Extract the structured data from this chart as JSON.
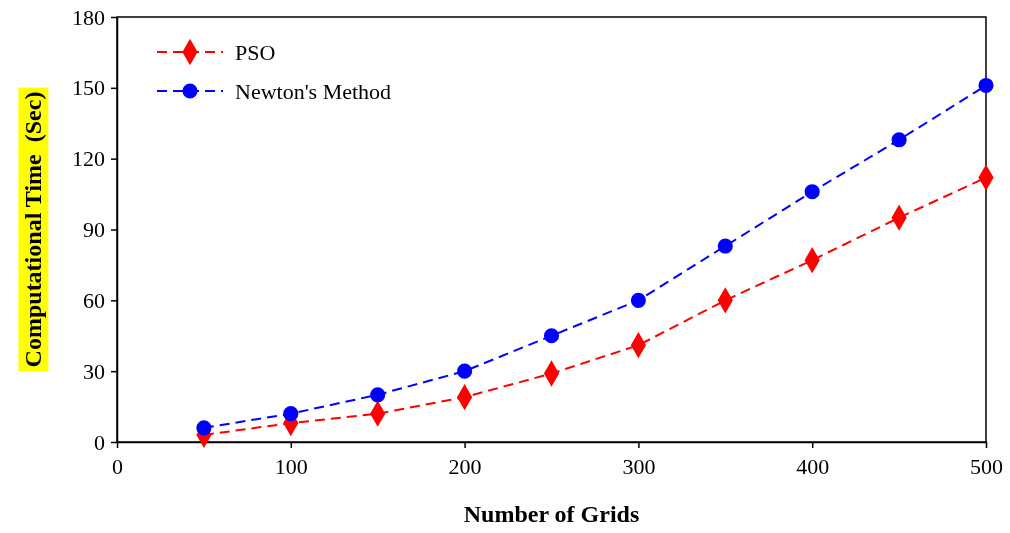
{
  "chart_data": {
    "type": "line",
    "xlabel": "Number of Grids",
    "ylabel": "Computational Time  (Sec)",
    "x": [
      50,
      100,
      150,
      200,
      250,
      300,
      350,
      400,
      450,
      500
    ],
    "series": [
      {
        "name": "PSO",
        "color": "#ff0000",
        "marker": "diamond",
        "line_style": "dashed",
        "values": [
          3,
          8,
          12,
          19,
          29,
          41,
          60,
          77,
          95,
          112
        ]
      },
      {
        "name": "Newton's Method",
        "color": "#0000ff",
        "marker": "circle",
        "line_style": "dashed",
        "values": [
          6,
          12,
          20,
          30,
          45,
          60,
          83,
          106,
          128,
          151
        ]
      }
    ],
    "xlim": [
      0,
      500
    ],
    "xticks": [
      0,
      100,
      200,
      300,
      400,
      500
    ],
    "ylim": [
      0,
      180
    ],
    "yticks": [
      0,
      30,
      60,
      90,
      120,
      150,
      180
    ],
    "grid": false,
    "legend": "top left"
  }
}
